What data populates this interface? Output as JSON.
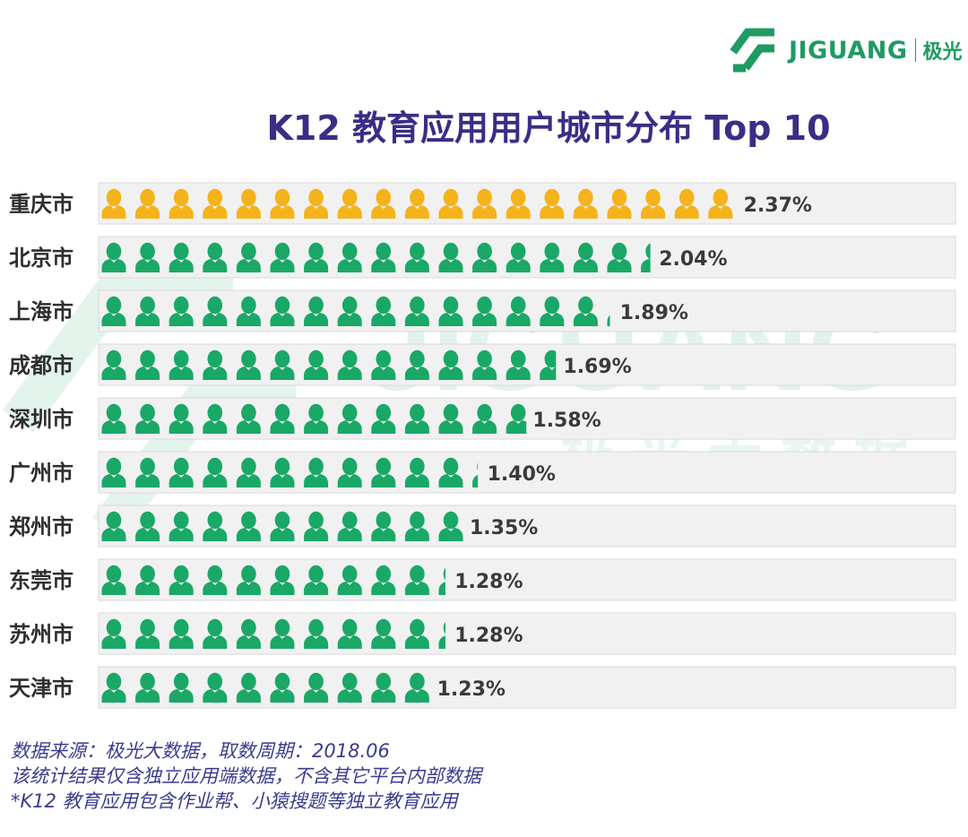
{
  "brand": {
    "name": "JIGUANG",
    "name_cn": "极光",
    "watermark_en": "JIGUANG",
    "watermark_cn": "极光大数据",
    "color_green": "#1f9a62"
  },
  "chart_data": {
    "type": "bar",
    "style": "pictograph",
    "title": "K12 教育应用用户城市分布 Top 10",
    "categories": [
      "重庆市",
      "北京市",
      "上海市",
      "成都市",
      "深圳市",
      "广州市",
      "郑州市",
      "东莞市",
      "苏州市",
      "天津市"
    ],
    "values": [
      2.37,
      2.04,
      1.89,
      1.69,
      1.58,
      1.4,
      1.35,
      1.28,
      1.28,
      1.23
    ],
    "labels": [
      "2.37%",
      "2.04%",
      "1.89%",
      "1.69%",
      "1.58%",
      "1.40%",
      "1.35%",
      "1.28%",
      "1.28%",
      "1.23%"
    ],
    "unit": "%",
    "xlim": [
      0,
      2.5
    ],
    "highlight_index": 0,
    "colors": {
      "highlight": "#f5b31b",
      "default": "#1aa867",
      "row_bg": "#f1f1f1",
      "row_border": "#d9d9d9",
      "label": "#3a3a3a"
    }
  },
  "footnote": {
    "lines": [
      "数据来源：极光大数据，取数周期：2018.06",
      "该统计结果仅含独立应用端数据，不含其它平台内部数据",
      " *K12 教育应用包含作业帮、小猿搜题等独立教育应用"
    ]
  }
}
